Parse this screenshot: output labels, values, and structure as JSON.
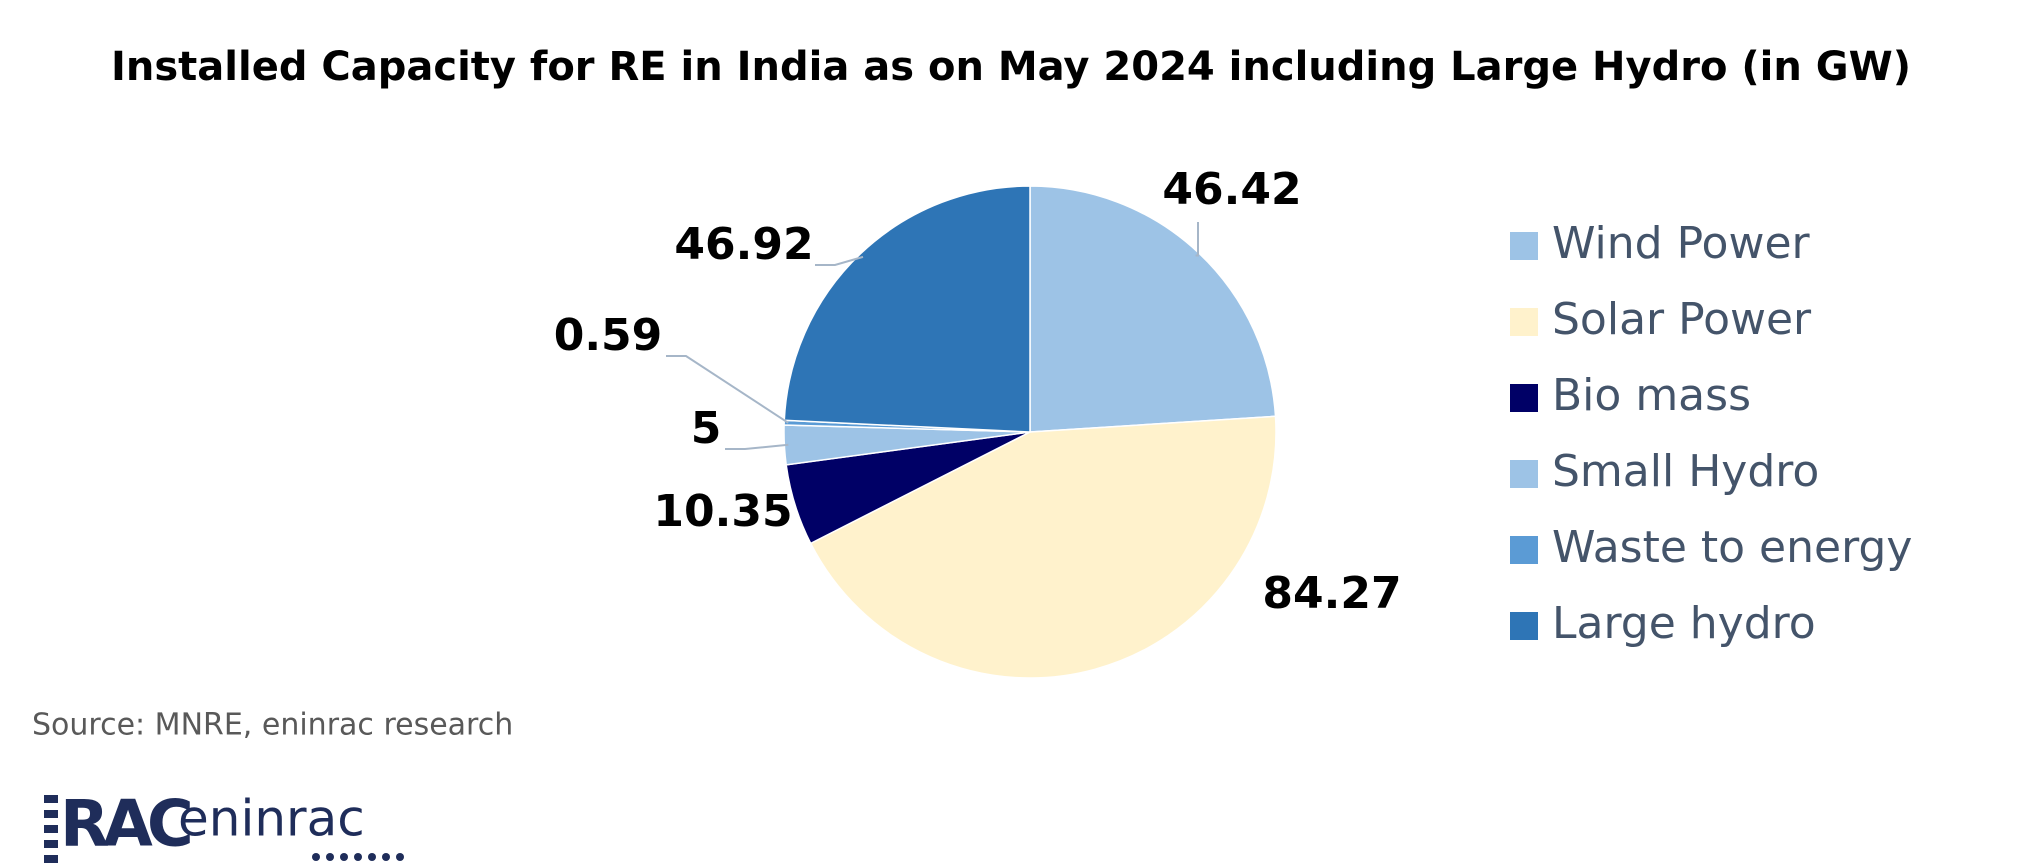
{
  "chart_data": {
    "type": "pie",
    "title": "Installed Capacity for RE in India as on May 2024 including Large Hydro  (in GW)",
    "categories": [
      "Wind Power",
      "Solar Power",
      "Bio mass",
      "Small Hydro",
      "Waste to energy",
      "Large hydro"
    ],
    "values": [
      46.42,
      84.27,
      10.35,
      5,
      0.59,
      46.92
    ],
    "colors": [
      "#9dc3e6",
      "#fff2cc",
      "#000066",
      "#9dc3e6",
      "#5b9bd5",
      "#2e75b6"
    ],
    "legend": "right",
    "source": "Source: MNRE, eninrac research"
  },
  "logo": {
    "mark": "RAC",
    "name": "eninrac"
  }
}
